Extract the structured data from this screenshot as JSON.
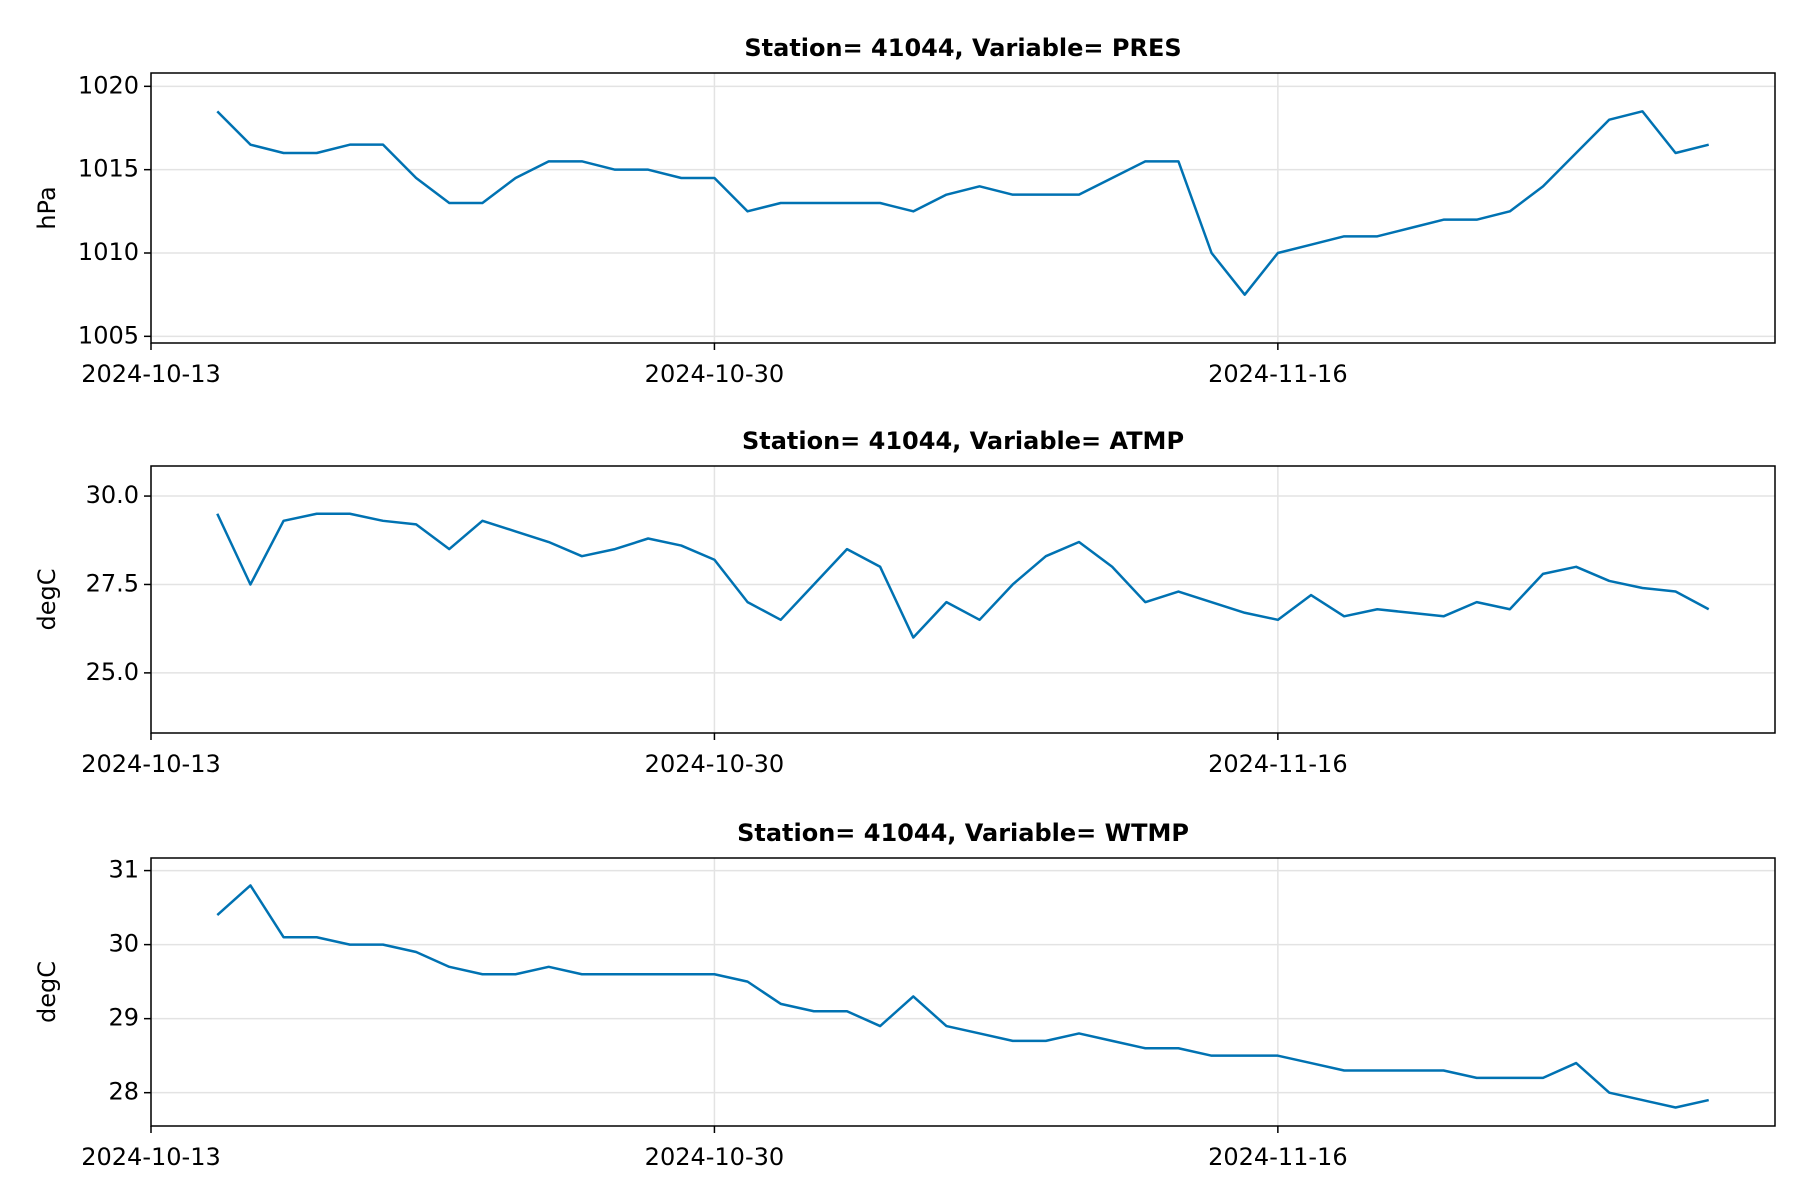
{
  "chart_data": [
    {
      "type": "line",
      "title": "Station= 41044, Variable= PRES",
      "y_label": "hPa",
      "color": "#0072b2",
      "grid": true,
      "x": [
        "2024-10-15",
        "2024-10-16",
        "2024-10-17",
        "2024-10-18",
        "2024-10-19",
        "2024-10-20",
        "2024-10-21",
        "2024-10-22",
        "2024-10-23",
        "2024-10-24",
        "2024-10-25",
        "2024-10-26",
        "2024-10-27",
        "2024-10-28",
        "2024-10-29",
        "2024-10-30",
        "2024-10-31",
        "2024-11-01",
        "2024-11-02",
        "2024-11-03",
        "2024-11-04",
        "2024-11-05",
        "2024-11-06",
        "2024-11-07",
        "2024-11-08",
        "2024-11-09",
        "2024-11-10",
        "2024-11-11",
        "2024-11-12",
        "2024-11-13",
        "2024-11-14",
        "2024-11-15",
        "2024-11-16",
        "2024-11-17",
        "2024-11-18",
        "2024-11-19",
        "2024-11-20",
        "2024-11-21",
        "2024-11-22",
        "2024-11-23",
        "2024-11-24",
        "2024-11-25",
        "2024-11-26",
        "2024-11-27",
        "2024-11-28",
        "2024-11-29"
      ],
      "values": [
        1018.5,
        1016.5,
        1016,
        1016,
        1016.5,
        1016.5,
        1014.5,
        1013,
        1013,
        1014.5,
        1015.5,
        1015.5,
        1015,
        1015,
        1014.5,
        1014.5,
        1012.5,
        1013,
        1013,
        1013,
        1013,
        1012.5,
        1013.5,
        1014,
        1013.5,
        1013.5,
        1013.5,
        1014.5,
        1015.5,
        1015.5,
        1010,
        1007.5,
        1010,
        1010.5,
        1011,
        1011,
        1011.5,
        1012,
        1012,
        1012.5,
        1014,
        1016,
        1018,
        1018.5,
        1016,
        1016.5
      ],
      "xlim": [
        "2024-10-13",
        "2024-12-01"
      ],
      "xticks": [
        "2024-10-13",
        "2024-10-30",
        "2024-11-16"
      ],
      "ylim": [
        1004.6,
        1020.8
      ],
      "yticks": [
        1005,
        1010,
        1015,
        1020
      ]
    },
    {
      "type": "line",
      "title": "Station= 41044, Variable= ATMP",
      "y_label": "degC",
      "color": "#0072b2",
      "grid": true,
      "x": [
        "2024-10-15",
        "2024-10-16",
        "2024-10-17",
        "2024-10-18",
        "2024-10-19",
        "2024-10-20",
        "2024-10-21",
        "2024-10-22",
        "2024-10-23",
        "2024-10-24",
        "2024-10-25",
        "2024-10-26",
        "2024-10-27",
        "2024-10-28",
        "2024-10-29",
        "2024-10-30",
        "2024-10-31",
        "2024-11-01",
        "2024-11-02",
        "2024-11-03",
        "2024-11-04",
        "2024-11-05",
        "2024-11-06",
        "2024-11-07",
        "2024-11-08",
        "2024-11-09",
        "2024-11-10",
        "2024-11-11",
        "2024-11-12",
        "2024-11-13",
        "2024-11-14",
        "2024-11-15",
        "2024-11-16",
        "2024-11-17",
        "2024-11-18",
        "2024-11-19",
        "2024-11-20",
        "2024-11-21",
        "2024-11-22",
        "2024-11-23",
        "2024-11-24",
        "2024-11-25",
        "2024-11-26",
        "2024-11-27",
        "2024-11-28",
        "2024-11-29"
      ],
      "values": [
        29.5,
        27.5,
        29.3,
        29.5,
        29.5,
        29.3,
        29.2,
        28.5,
        29.3,
        29.0,
        28.7,
        28.3,
        28.5,
        28.8,
        28.6,
        28.2,
        27.0,
        26.5,
        27.5,
        28.5,
        28.0,
        26.0,
        27.0,
        26.5,
        27.5,
        28.3,
        28.7,
        28.0,
        27.0,
        27.3,
        27.0,
        26.7,
        26.5,
        27.2,
        26.6,
        26.8,
        26.7,
        26.6,
        27.0,
        26.8,
        27.8,
        28.0,
        27.6,
        27.4,
        27.3,
        26.8
      ],
      "xlim": [
        "2024-10-13",
        "2024-12-01"
      ],
      "xticks": [
        "2024-10-13",
        "2024-10-30",
        "2024-11-16"
      ],
      "ylim": [
        23.3,
        30.85
      ],
      "yticks": [
        {
          "value": 25,
          "label": "25.0"
        },
        27.5,
        {
          "value": 30,
          "label": "30.0"
        }
      ]
    },
    {
      "type": "line",
      "title": "Station= 41044, Variable= WTMP",
      "y_label": "degC",
      "color": "#0072b2",
      "grid": true,
      "x": [
        "2024-10-15",
        "2024-10-16",
        "2024-10-17",
        "2024-10-18",
        "2024-10-19",
        "2024-10-20",
        "2024-10-21",
        "2024-10-22",
        "2024-10-23",
        "2024-10-24",
        "2024-10-25",
        "2024-10-26",
        "2024-10-27",
        "2024-10-28",
        "2024-10-29",
        "2024-10-30",
        "2024-10-31",
        "2024-11-01",
        "2024-11-02",
        "2024-11-03",
        "2024-11-04",
        "2024-11-05",
        "2024-11-06",
        "2024-11-07",
        "2024-11-08",
        "2024-11-09",
        "2024-11-10",
        "2024-11-11",
        "2024-11-12",
        "2024-11-13",
        "2024-11-14",
        "2024-11-15",
        "2024-11-16",
        "2024-11-17",
        "2024-11-18",
        "2024-11-19",
        "2024-11-20",
        "2024-11-21",
        "2024-11-22",
        "2024-11-23",
        "2024-11-24",
        "2024-11-25",
        "2024-11-26",
        "2024-11-27",
        "2024-11-28",
        "2024-11-29"
      ],
      "values": [
        30.4,
        30.8,
        30.1,
        30.1,
        30.0,
        30.0,
        29.9,
        29.7,
        29.6,
        29.6,
        29.7,
        29.6,
        29.6,
        29.6,
        29.6,
        29.6,
        29.5,
        29.2,
        29.1,
        29.1,
        28.9,
        29.3,
        28.9,
        28.8,
        28.7,
        28.7,
        28.8,
        28.7,
        28.6,
        28.6,
        28.5,
        28.5,
        28.5,
        28.4,
        28.3,
        28.3,
        28.3,
        28.3,
        28.2,
        28.2,
        28.2,
        28.4,
        28.0,
        27.9,
        27.8,
        27.9
      ],
      "xlim": [
        "2024-10-13",
        "2024-12-01"
      ],
      "xticks": [
        "2024-10-13",
        "2024-10-30",
        "2024-11-16"
      ],
      "ylim": [
        27.55,
        31.17
      ],
      "yticks": [
        28,
        29,
        30,
        31
      ]
    }
  ]
}
